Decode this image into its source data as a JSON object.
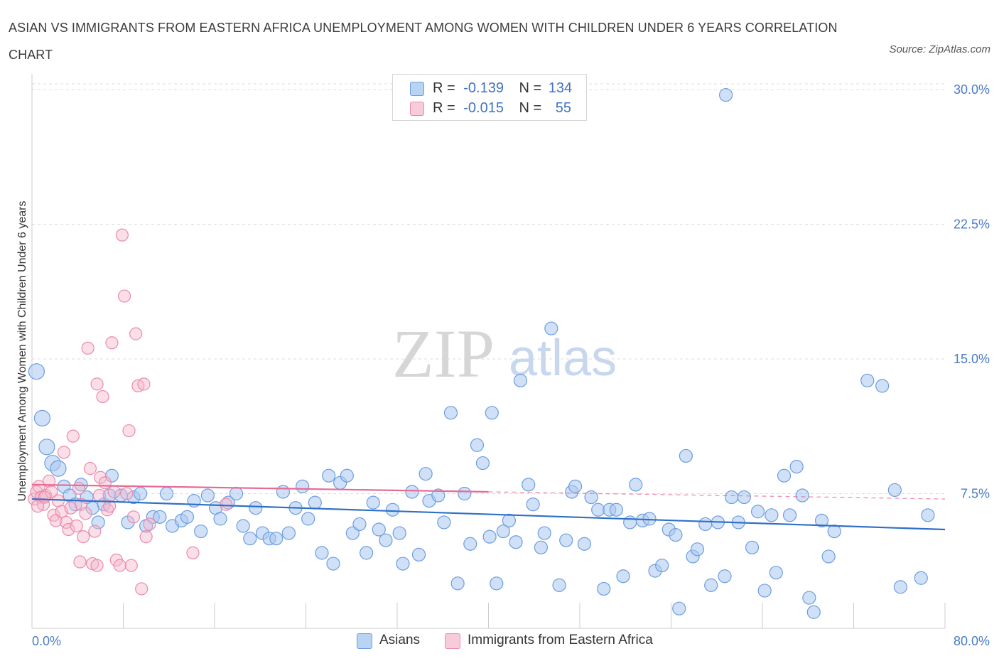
{
  "title": "ASIAN VS IMMIGRANTS FROM EASTERN AFRICA UNEMPLOYMENT AMONG WOMEN WITH CHILDREN UNDER 6 YEARS CORRELATION CHART",
  "source": "Source: ZipAtlas.com",
  "watermark": {
    "zip": "ZIP",
    "atlas": "atlas"
  },
  "legend": {
    "series": [
      {
        "r_label": "R =",
        "r_value": "-0.139",
        "n_label": "N =",
        "n_value": "134",
        "color": "#a9c8f0"
      },
      {
        "r_label": "R =",
        "r_value": "-0.015",
        "n_label": "N =",
        "n_value": "55",
        "color": "#f5b8cb"
      }
    ]
  },
  "bottom_legend": [
    "Asians",
    "Immigrants from Eastern Africa"
  ],
  "chart_data": {
    "type": "scatter",
    "ylabel": "Unemployment Among Women with Children Under 6 years",
    "x_tick_labels": [
      "0.0%",
      "80.0%"
    ],
    "y_tick_labels": [
      "7.5%",
      "15.0%",
      "22.5%",
      "30.0%"
    ],
    "xlim": [
      0,
      80
    ],
    "ylim": [
      0,
      30
    ],
    "grid": true,
    "colors": {
      "Asians": "#5b93d9",
      "Immigrants from Eastern Africa": "#ec8aab",
      "asians_trend": "#2f6fc7",
      "imm_trend": "#e76a95"
    },
    "series": [
      {
        "name": "Asians",
        "trend": {
          "x": [
            0,
            80
          ],
          "y": [
            7.2,
            5.5
          ]
        },
        "points": [
          [
            0.4,
            14.3
          ],
          [
            0.9,
            11.7
          ],
          [
            1.3,
            10.1
          ],
          [
            1.8,
            9.2
          ],
          [
            2.3,
            8.9
          ],
          [
            2.8,
            7.9
          ],
          [
            3.3,
            7.4
          ],
          [
            3.8,
            6.9
          ],
          [
            4.3,
            8.0
          ],
          [
            4.8,
            7.3
          ],
          [
            5.3,
            6.7
          ],
          [
            5.8,
            5.9
          ],
          [
            6.3,
            6.9
          ],
          [
            7.0,
            8.5
          ],
          [
            6.8,
            7.4
          ],
          [
            7.8,
            7.4
          ],
          [
            8.4,
            5.9
          ],
          [
            8.9,
            7.3
          ],
          [
            9.5,
            7.5
          ],
          [
            10.0,
            5.7
          ],
          [
            10.6,
            6.2
          ],
          [
            11.2,
            6.2
          ],
          [
            11.8,
            7.5
          ],
          [
            12.3,
            5.7
          ],
          [
            13.1,
            6.0
          ],
          [
            13.6,
            6.2
          ],
          [
            14.2,
            7.1
          ],
          [
            14.8,
            5.4
          ],
          [
            15.4,
            7.4
          ],
          [
            16.1,
            6.7
          ],
          [
            16.5,
            6.1
          ],
          [
            17.2,
            7.0
          ],
          [
            17.9,
            7.5
          ],
          [
            18.5,
            5.7
          ],
          [
            19.1,
            5.0
          ],
          [
            19.6,
            6.7
          ],
          [
            20.2,
            5.3
          ],
          [
            20.8,
            5.0
          ],
          [
            21.4,
            5.0
          ],
          [
            22.0,
            7.6
          ],
          [
            22.5,
            5.3
          ],
          [
            23.1,
            6.7
          ],
          [
            23.7,
            7.9
          ],
          [
            24.2,
            6.1
          ],
          [
            24.8,
            7.0
          ],
          [
            25.4,
            4.2
          ],
          [
            26.0,
            8.5
          ],
          [
            26.4,
            3.6
          ],
          [
            27.0,
            8.1
          ],
          [
            27.6,
            8.5
          ],
          [
            28.1,
            5.3
          ],
          [
            28.7,
            5.8
          ],
          [
            29.3,
            4.2
          ],
          [
            29.9,
            7.0
          ],
          [
            30.4,
            5.5
          ],
          [
            31.0,
            4.9
          ],
          [
            31.6,
            6.6
          ],
          [
            32.2,
            5.3
          ],
          [
            32.5,
            3.6
          ],
          [
            33.3,
            7.6
          ],
          [
            33.9,
            4.1
          ],
          [
            34.5,
            8.6
          ],
          [
            34.8,
            7.1
          ],
          [
            35.6,
            7.4
          ],
          [
            36.1,
            5.9
          ],
          [
            36.7,
            12.0
          ],
          [
            37.3,
            2.5
          ],
          [
            37.9,
            7.5
          ],
          [
            38.4,
            4.7
          ],
          [
            39.0,
            10.2
          ],
          [
            39.5,
            9.2
          ],
          [
            40.1,
            5.1
          ],
          [
            40.7,
            2.5
          ],
          [
            41.3,
            5.4
          ],
          [
            41.8,
            6.0
          ],
          [
            42.4,
            4.8
          ],
          [
            42.8,
            13.8
          ],
          [
            43.5,
            8.0
          ],
          [
            43.9,
            6.9
          ],
          [
            44.6,
            4.5
          ],
          [
            44.9,
            5.3
          ],
          [
            45.5,
            16.7
          ],
          [
            46.2,
            2.4
          ],
          [
            46.8,
            4.9
          ],
          [
            47.3,
            7.6
          ],
          [
            47.6,
            7.9
          ],
          [
            48.4,
            4.7
          ],
          [
            49.0,
            7.3
          ],
          [
            49.6,
            6.6
          ],
          [
            50.1,
            2.2
          ],
          [
            50.6,
            6.6
          ],
          [
            51.2,
            6.6
          ],
          [
            51.8,
            2.9
          ],
          [
            52.4,
            5.9
          ],
          [
            52.9,
            8.0
          ],
          [
            53.5,
            6.0
          ],
          [
            54.1,
            6.1
          ],
          [
            54.6,
            3.2
          ],
          [
            55.2,
            3.5
          ],
          [
            55.8,
            5.5
          ],
          [
            56.4,
            5.2
          ],
          [
            56.7,
            1.1
          ],
          [
            57.3,
            9.6
          ],
          [
            57.9,
            4.0
          ],
          [
            58.3,
            4.4
          ],
          [
            59.0,
            5.8
          ],
          [
            59.5,
            2.4
          ],
          [
            60.1,
            5.9
          ],
          [
            60.7,
            2.9
          ],
          [
            61.3,
            7.3
          ],
          [
            61.9,
            5.9
          ],
          [
            62.4,
            7.3
          ],
          [
            63.1,
            4.5
          ],
          [
            63.6,
            6.5
          ],
          [
            64.2,
            2.1
          ],
          [
            64.8,
            6.3
          ],
          [
            65.2,
            3.1
          ],
          [
            65.9,
            8.5
          ],
          [
            66.4,
            6.3
          ],
          [
            67.0,
            9.0
          ],
          [
            67.5,
            7.4
          ],
          [
            68.1,
            1.7
          ],
          [
            68.5,
            0.9
          ],
          [
            69.2,
            6.0
          ],
          [
            69.8,
            4.0
          ],
          [
            70.3,
            5.4
          ],
          [
            75.6,
            7.7
          ],
          [
            76.1,
            2.3
          ],
          [
            77.9,
            2.8
          ],
          [
            78.5,
            6.3
          ],
          [
            73.2,
            13.8
          ],
          [
            74.5,
            13.5
          ],
          [
            60.8,
            29.7
          ],
          [
            40.3,
            12.0
          ]
        ]
      },
      {
        "name": "Immigrants from Eastern Africa",
        "trend": {
          "x": [
            0,
            80
          ],
          "y": [
            8.0,
            7.2
          ]
        },
        "points": [
          [
            0.2,
            7.2
          ],
          [
            0.4,
            7.6
          ],
          [
            0.6,
            7.9
          ],
          [
            0.8,
            7.3
          ],
          [
            1.0,
            6.9
          ],
          [
            1.2,
            7.4
          ],
          [
            1.5,
            8.2
          ],
          [
            1.7,
            7.6
          ],
          [
            1.9,
            6.3
          ],
          [
            2.1,
            6.0
          ],
          [
            2.3,
            7.1
          ],
          [
            2.6,
            6.5
          ],
          [
            2.8,
            9.8
          ],
          [
            3.0,
            5.9
          ],
          [
            3.2,
            5.5
          ],
          [
            3.4,
            6.7
          ],
          [
            3.6,
            10.7
          ],
          [
            3.9,
            5.7
          ],
          [
            4.1,
            7.8
          ],
          [
            4.3,
            6.9
          ],
          [
            4.5,
            5.1
          ],
          [
            4.7,
            6.4
          ],
          [
            4.9,
            15.6
          ],
          [
            5.1,
            8.9
          ],
          [
            5.3,
            3.6
          ],
          [
            5.5,
            5.4
          ],
          [
            5.7,
            13.6
          ],
          [
            6.0,
            8.4
          ],
          [
            6.2,
            12.9
          ],
          [
            6.4,
            8.1
          ],
          [
            6.6,
            6.6
          ],
          [
            6.8,
            6.8
          ],
          [
            7.0,
            15.9
          ],
          [
            7.2,
            7.6
          ],
          [
            7.4,
            3.8
          ],
          [
            7.7,
            3.5
          ],
          [
            7.9,
            21.9
          ],
          [
            8.1,
            18.5
          ],
          [
            8.3,
            7.5
          ],
          [
            8.5,
            11.0
          ],
          [
            8.7,
            3.5
          ],
          [
            8.9,
            6.2
          ],
          [
            9.1,
            16.4
          ],
          [
            9.3,
            13.5
          ],
          [
            9.6,
            2.2
          ],
          [
            9.8,
            13.6
          ],
          [
            10.0,
            5.1
          ],
          [
            10.3,
            5.8
          ],
          [
            4.2,
            3.7
          ],
          [
            5.7,
            3.5
          ],
          [
            5.9,
            7.4
          ],
          [
            14.1,
            4.2
          ],
          [
            17.0,
            6.9
          ],
          [
            0.5,
            6.8
          ],
          [
            1.1,
            7.3
          ]
        ]
      }
    ]
  }
}
